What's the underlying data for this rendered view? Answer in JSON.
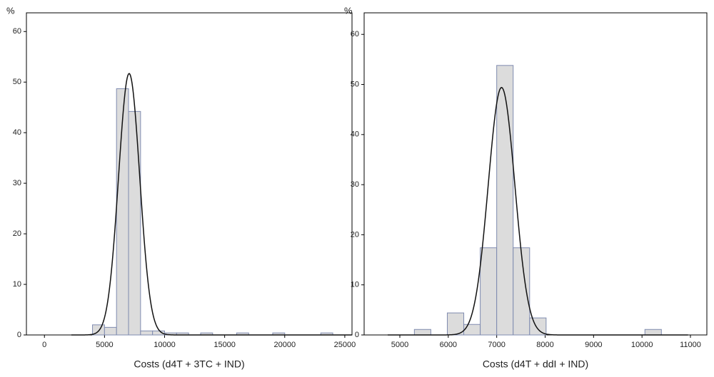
{
  "chart_data": [
    {
      "type": "histogram",
      "y_label": "%",
      "x_label": "Costs (d4T + 3TC + IND)",
      "bins": [
        4000,
        5000,
        6000,
        7000,
        8000,
        9000,
        10000,
        11000,
        12000,
        13000,
        14000,
        15000,
        16000,
        17000,
        18000,
        19000,
        20000,
        21000,
        22000,
        23000,
        24000
      ],
      "values": [
        2.0,
        1.5,
        48.7,
        44.2,
        0.8,
        0.8,
        0.4,
        0.4,
        0,
        0.4,
        0,
        0,
        0.4,
        0,
        0,
        0.4,
        0,
        0,
        0,
        0.4
      ],
      "color": "#dcdcdc",
      "edge_color": "#7f8bb0",
      "curve": {
        "mean": 7050,
        "sd": 880,
        "peak": 51.7
      },
      "xlim": [
        -1500,
        25600
      ],
      "xticks": [
        0,
        5000,
        10000,
        15000,
        20000,
        25000
      ],
      "ylim": [
        0,
        63.7
      ],
      "yticks": [
        0,
        10,
        20,
        30,
        40,
        50,
        60
      ]
    },
    {
      "type": "histogram",
      "y_label": "%",
      "x_label": "Costs (d4T + ddI + IND)",
      "bins": [
        5300,
        5640,
        5980,
        6320,
        6660,
        7000,
        7340,
        7680,
        8020,
        8360,
        8700,
        9040,
        9380,
        9720,
        10060,
        10400
      ],
      "values": [
        1.1,
        0,
        4.4,
        2.1,
        17.4,
        53.8,
        17.4,
        3.4,
        0,
        0,
        0,
        0,
        0,
        0,
        1.1
      ],
      "color": "#dcdcdc",
      "edge_color": "#7f8bb0",
      "curve": {
        "mean": 7100,
        "sd": 275,
        "peak": 49.4
      },
      "xlim": [
        4263,
        11339
      ],
      "xticks": [
        5000,
        6000,
        7000,
        8000,
        9000,
        10000,
        11000
      ],
      "ylim": [
        0,
        64.3
      ],
      "yticks": [
        0,
        10,
        20,
        30,
        40,
        50,
        60
      ]
    }
  ]
}
